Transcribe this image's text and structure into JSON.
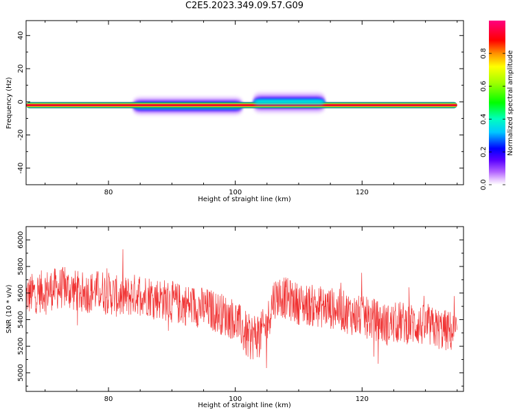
{
  "title": "C2E5.2023.349.09.57.G09",
  "chart_data": [
    {
      "type": "heatmap",
      "xlabel": "Height of straight line (km)",
      "ylabel": "Frequency (Hz)",
      "xlim": [
        67,
        136
      ],
      "ylim": [
        -50,
        49
      ],
      "xticks": [
        80,
        100,
        120
      ],
      "yticks": [
        -40,
        -20,
        0,
        20,
        40
      ],
      "colorbar": {
        "label": "Normalized spectral amplitude",
        "ticks": [
          "0.0",
          "0.2",
          "0.4",
          "0.6",
          "0.8"
        ],
        "range": [
          0,
          1
        ]
      },
      "segments": [
        {
          "x0": 67,
          "x1": 84,
          "center": -2,
          "halo": 1.5,
          "purple": 0
        },
        {
          "x0": 84,
          "x1": 101,
          "center": -2.5,
          "halo": 2.2,
          "purple": 1
        },
        {
          "x0": 101,
          "x1": 103,
          "center": -2,
          "halo": 1.5,
          "purple": 0
        },
        {
          "x0": 103,
          "x1": 114,
          "center": -0.5,
          "halo": 2.5,
          "purple": 1
        },
        {
          "x0": 114,
          "x1": 135,
          "center": -2,
          "halo": 1.5,
          "purple": 0
        }
      ],
      "main_line_x": [
        67,
        135
      ],
      "main_line_freq": -2
    },
    {
      "type": "line",
      "xlabel": "Height of straight line (km)",
      "ylabel": "SNR (10 * v/v)",
      "xlim": [
        67,
        136
      ],
      "ylim": [
        4860,
        6100
      ],
      "xticks": [
        80,
        100,
        120
      ],
      "yticks": [
        5000,
        5200,
        5400,
        5600,
        5800,
        6000
      ],
      "color": "#f03232",
      "series": [
        {
          "x": [
            67,
            70,
            73,
            76,
            79,
            82,
            85,
            88,
            91,
            94,
            97,
            100,
            101,
            102,
            103,
            104,
            105,
            106,
            107,
            110,
            113,
            116,
            119,
            122,
            124,
            126,
            129,
            132,
            135
          ],
          "values": [
            5580,
            5620,
            5640,
            5600,
            5620,
            5560,
            5600,
            5560,
            5520,
            5500,
            5460,
            5400,
            5340,
            5260,
            5280,
            5300,
            5360,
            5560,
            5580,
            5520,
            5500,
            5480,
            5430,
            5400,
            5360,
            5380,
            5360,
            5330,
            5300
          ]
        }
      ]
    }
  ]
}
